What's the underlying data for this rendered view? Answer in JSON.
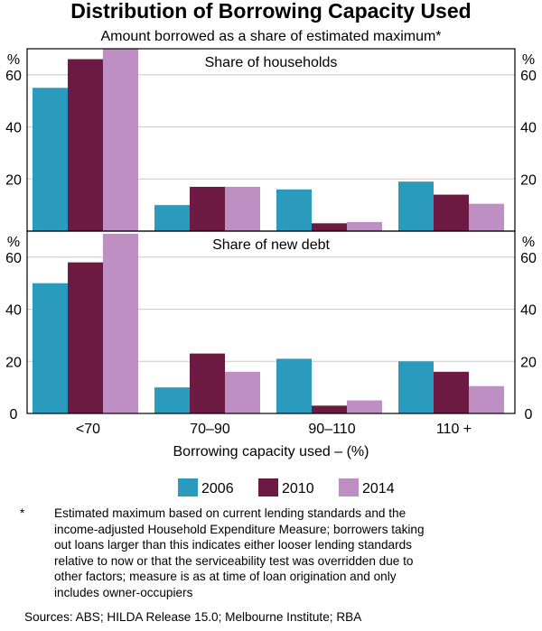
{
  "colors": {
    "s2006": "#2a9bbd",
    "s2010": "#6d1a43",
    "s2014": "#bd8fc2"
  },
  "chart_data": {
    "type": "bar",
    "title": "Distribution of Borrowing Capacity Used",
    "subtitle": "Amount borrowed as a share of estimated maximum*",
    "xlabel": "Borrowing capacity used – (%)",
    "categories": [
      "<70",
      "70–90",
      "90–110",
      "110 +"
    ],
    "legend": {
      "placement": "bottom",
      "entries": [
        "2006",
        "2010",
        "2014"
      ]
    },
    "panels": [
      {
        "title": "Share of households",
        "unit": "%",
        "ylim": [
          0,
          70
        ],
        "yticks": [
          20,
          40,
          60
        ],
        "series": [
          {
            "name": "2006",
            "values": [
              55,
              10,
              16,
              19
            ]
          },
          {
            "name": "2010",
            "values": [
              66,
              17,
              3,
              14
            ]
          },
          {
            "name": "2014",
            "values": [
              70,
              17,
              3.5,
              10.5
            ]
          }
        ]
      },
      {
        "title": "Share of new debt",
        "unit": "%",
        "ylim": [
          0,
          70
        ],
        "yticks": [
          0,
          20,
          40,
          60
        ],
        "series": [
          {
            "name": "2006",
            "values": [
              50,
              10,
              21,
              20
            ]
          },
          {
            "name": "2010",
            "values": [
              58,
              23,
              3,
              16
            ]
          },
          {
            "name": "2014",
            "values": [
              69,
              16,
              5,
              10.5
            ]
          }
        ]
      }
    ]
  },
  "notes": {
    "marker": "*",
    "lines": [
      "Estimated maximum based on current lending standards and the",
      "income-adjusted Household Expenditure Measure; borrowers taking",
      "out loans larger than this indicates either looser lending standards",
      "relative to now or that the serviceability test was overridden due to",
      "other factors; measure is as at time of loan origination and only",
      "includes owner-occupiers"
    ]
  },
  "sources": "Sources: ABS; HILDA Release 15.0; Melbourne Institute; RBA"
}
